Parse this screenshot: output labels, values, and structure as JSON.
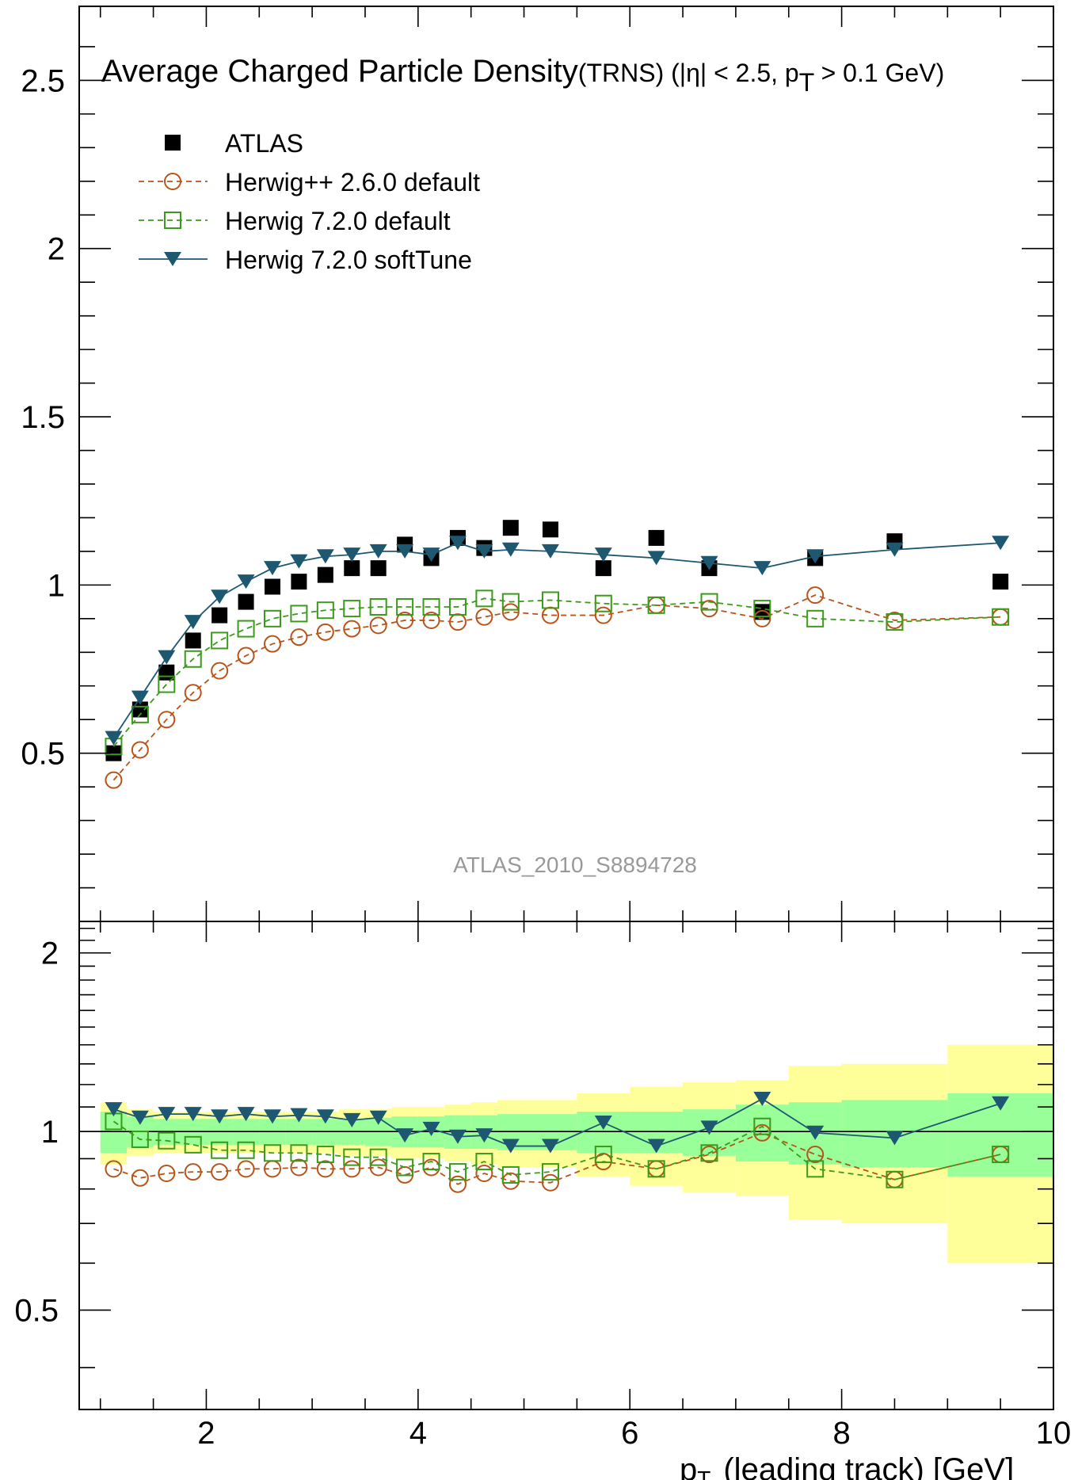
{
  "chart_data": {
    "type": "line",
    "title_main": "Average Charged Particle Density",
    "title_rest": "(TRNS) (|η| < 2.5, p",
    "title_sub": "T",
    "title_end": " > 0.1 GeV)",
    "watermark": "ATLAS_2010_S8894728",
    "xlabel_p": "p",
    "xlabel_sub": "T",
    "xlabel_rest": "(leading track) [GeV]",
    "xlim": [
      0.8,
      10.0
    ],
    "xticks": [
      "2",
      "4",
      "6",
      "8",
      "10"
    ],
    "top_ylim": [
      0,
      2.72
    ],
    "top_yticks": [
      "0.5",
      "1",
      "1.5",
      "2",
      "2.5"
    ],
    "bottom_ylim": [
      0.34,
      2.26
    ],
    "bottom_yticks": [
      "0.5",
      "1",
      "2"
    ],
    "x": [
      1.125,
      1.375,
      1.625,
      1.875,
      2.125,
      2.375,
      2.625,
      2.875,
      3.125,
      3.375,
      3.625,
      3.875,
      4.125,
      4.375,
      4.625,
      4.875,
      5.25,
      5.75,
      6.25,
      6.75,
      7.25,
      7.75,
      8.5,
      9.5
    ],
    "legend": [
      {
        "label": "ATLAS",
        "color": "#000000",
        "marker": "filled-square",
        "line": "none"
      },
      {
        "label": "Herwig++ 2.6.0 default",
        "color": "#b8541a",
        "marker": "open-circle",
        "line": "dashed"
      },
      {
        "label": "Herwig 7.2.0 default",
        "color": "#3a9a1a",
        "marker": "open-square",
        "line": "dashed"
      },
      {
        "label": "Herwig 7.2.0 softTune",
        "color": "#1d5870",
        "marker": "filled-triangle-down",
        "line": "solid"
      }
    ],
    "series": [
      {
        "name": "ATLAS",
        "color": "#000000",
        "values": [
          0.5,
          0.63,
          0.74,
          0.835,
          0.91,
          0.95,
          0.995,
          1.01,
          1.03,
          1.05,
          1.05,
          1.12,
          1.08,
          1.14,
          1.11,
          1.17,
          1.165,
          1.05,
          1.14,
          1.05,
          0.92,
          1.08,
          1.13,
          1.01
        ]
      },
      {
        "name": "Herwig++ 2.6.0 default",
        "color": "#b8541a",
        "values": [
          0.42,
          0.51,
          0.6,
          0.68,
          0.745,
          0.79,
          0.825,
          0.845,
          0.86,
          0.87,
          0.88,
          0.895,
          0.895,
          0.89,
          0.905,
          0.92,
          0.91,
          0.91,
          0.94,
          0.93,
          0.9,
          0.97,
          0.895,
          0.905
        ],
        "ratio": [
          0.865,
          0.835,
          0.85,
          0.855,
          0.855,
          0.865,
          0.865,
          0.87,
          0.865,
          0.865,
          0.87,
          0.845,
          0.87,
          0.815,
          0.85,
          0.825,
          0.82,
          0.89,
          0.865,
          0.915,
          0.995,
          0.915,
          0.83,
          0.915
        ]
      },
      {
        "name": "Herwig 7.2.0 default",
        "color": "#3a9a1a",
        "values": [
          0.52,
          0.615,
          0.705,
          0.78,
          0.835,
          0.87,
          0.9,
          0.915,
          0.925,
          0.93,
          0.935,
          0.935,
          0.935,
          0.935,
          0.96,
          0.95,
          0.955,
          0.945,
          0.94,
          0.95,
          0.93,
          0.9,
          0.89,
          0.905
        ],
        "ratio": [
          1.04,
          0.97,
          0.965,
          0.95,
          0.93,
          0.93,
          0.92,
          0.92,
          0.915,
          0.905,
          0.905,
          0.87,
          0.89,
          0.855,
          0.89,
          0.845,
          0.855,
          0.915,
          0.865,
          0.92,
          1.02,
          0.865,
          0.83,
          0.915
        ]
      },
      {
        "name": "Herwig 7.2.0 softTune",
        "color": "#1d5870",
        "values": [
          0.545,
          0.665,
          0.785,
          0.89,
          0.965,
          1.01,
          1.05,
          1.07,
          1.085,
          1.09,
          1.1,
          1.1,
          1.09,
          1.125,
          1.1,
          1.105,
          1.1,
          1.09,
          1.08,
          1.065,
          1.05,
          1.085,
          1.105,
          1.125
        ],
        "ratio": [
          1.09,
          1.055,
          1.07,
          1.07,
          1.06,
          1.07,
          1.06,
          1.065,
          1.06,
          1.045,
          1.055,
          0.985,
          1.01,
          0.98,
          0.985,
          0.945,
          0.945,
          1.035,
          0.945,
          1.015,
          1.135,
          0.995,
          0.975,
          1.115
        ]
      }
    ],
    "band_edges": [
      1.0,
      1.25,
      1.5,
      1.75,
      2.0,
      2.25,
      2.5,
      2.75,
      3.0,
      3.25,
      3.5,
      3.75,
      4.0,
      4.25,
      4.5,
      4.75,
      5.0,
      5.5,
      6.0,
      6.5,
      7.0,
      7.5,
      8.0,
      9.0,
      10.0
    ],
    "band_inner": [
      0.08,
      0.06,
      0.05,
      0.05,
      0.05,
      0.05,
      0.05,
      0.05,
      0.05,
      0.05,
      0.055,
      0.06,
      0.06,
      0.065,
      0.065,
      0.07,
      0.07,
      0.08,
      0.08,
      0.09,
      0.11,
      0.12,
      0.13,
      0.16
    ],
    "band_outer": [
      0.12,
      0.09,
      0.08,
      0.08,
      0.08,
      0.08,
      0.08,
      0.08,
      0.08,
      0.09,
      0.09,
      0.1,
      0.1,
      0.11,
      0.12,
      0.13,
      0.13,
      0.16,
      0.19,
      0.21,
      0.22,
      0.29,
      0.3,
      0.4
    ],
    "band_colors": {
      "outer": "#ffff99",
      "inner": "#99ff99"
    },
    "ratio_ref": 1.0
  }
}
